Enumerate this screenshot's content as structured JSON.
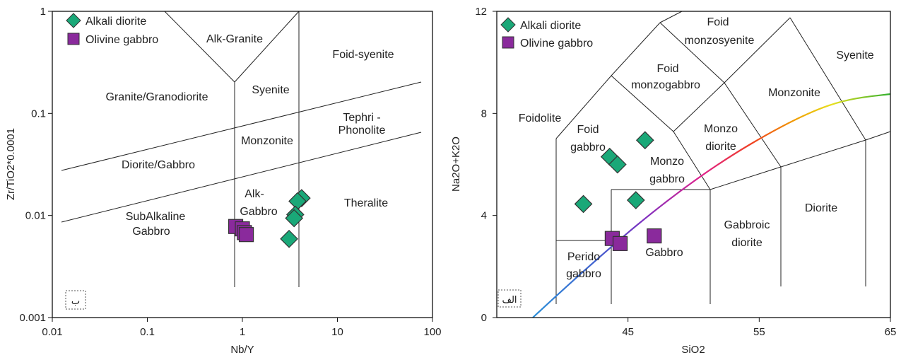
{
  "colors": {
    "diorite": "#1aa878",
    "gabbro": "#8a2a9c",
    "marker_stroke": "#333333"
  },
  "chart_data": [
    {
      "type": "scatter",
      "xlabel": "Nb/Y",
      "ylabel": "Zr/TiO2*0.0001",
      "xscale": "log",
      "yscale": "log",
      "xlim": [
        0.01,
        100
      ],
      "ylim": [
        0.001,
        1
      ],
      "x_ticks": [
        "0.01",
        "0.1",
        "1",
        "10",
        "100"
      ],
      "y_ticks": [
        "0.001",
        "0.01",
        "0.1",
        "1"
      ],
      "panel_label": "ب",
      "legend": {
        "placement": "top-left",
        "entries": [
          "Alkali diorite",
          "Olivine gabbro"
        ]
      },
      "fields": [
        "Alk-Granite",
        "Foid-syenite",
        "Granite/Granodiorite",
        "Syenite",
        "Tephri  -",
        "Phonolite",
        "Monzonite",
        "Diorite/Gabbro",
        "Alk-",
        "Gabbro",
        "Theralite",
        "SubAlkaline",
        "Gabbro"
      ],
      "series": [
        {
          "name": "Alkali diorite",
          "marker": "diamond",
          "points": [
            [
              4.2,
              0.0148
            ],
            [
              3.8,
              0.0138
            ],
            [
              3.6,
              0.0102
            ],
            [
              3.5,
              0.0094
            ],
            [
              3.1,
              0.0059
            ]
          ]
        },
        {
          "name": "Olivine gabbro",
          "marker": "square",
          "points": [
            [
              0.85,
              0.0078
            ],
            [
              1.0,
              0.0074
            ],
            [
              1.05,
              0.0068
            ],
            [
              1.1,
              0.0065
            ]
          ]
        }
      ]
    },
    {
      "type": "scatter",
      "xlabel": "SiO2",
      "ylabel": "Na2O+K2O",
      "xlim": [
        35,
        65
      ],
      "ylim": [
        0,
        12
      ],
      "x_ticks": [
        "45",
        "55",
        "65"
      ],
      "y_ticks": [
        "0",
        "4",
        "8",
        "12"
      ],
      "panel_label": "الف",
      "legend": {
        "placement": "top-left",
        "entries": [
          "Alkali diorite",
          "Olivine gabbro"
        ]
      },
      "fields": [
        "Foid",
        "monzosyenite",
        "Syenite",
        "Foid",
        "monzogabbro",
        "Monzonite",
        "Foidolite",
        "Foid",
        "gabbro",
        "Monzo",
        "diorite",
        "Monzo",
        "gabbro",
        "Diorite",
        "Gabbroic",
        "diorite",
        "Perido",
        "gabbro",
        "Gabbro"
      ],
      "series": [
        {
          "name": "Alkali diorite",
          "marker": "diamond",
          "points": [
            [
              46.3,
              6.95
            ],
            [
              43.6,
              6.3
            ],
            [
              44.2,
              6.0
            ],
            [
              45.6,
              4.6
            ],
            [
              41.6,
              4.45
            ]
          ]
        },
        {
          "name": "Olivine gabbro",
          "marker": "square",
          "points": [
            [
              43.8,
              3.1
            ],
            [
              44.4,
              2.9
            ],
            [
              47.0,
              3.2
            ]
          ]
        }
      ]
    }
  ]
}
